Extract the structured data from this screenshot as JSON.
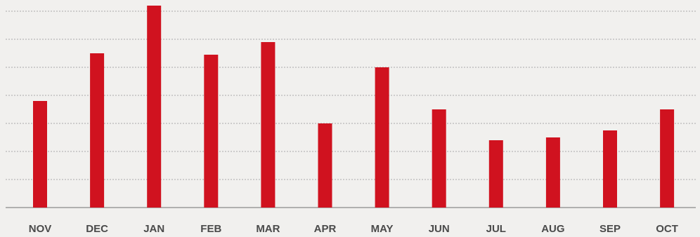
{
  "chart_data": {
    "type": "bar",
    "categories": [
      "NOV",
      "DEC",
      "JAN",
      "FEB",
      "MAR",
      "APR",
      "MAY",
      "JUN",
      "JUL",
      "AUG",
      "SEP",
      "OCT"
    ],
    "values": [
      3.8,
      5.5,
      7.2,
      5.45,
      5.9,
      3.0,
      5.0,
      3.5,
      2.4,
      2.5,
      2.75,
      3.5
    ],
    "title": "",
    "xlabel": "",
    "ylabel": "",
    "ylim": [
      0,
      7
    ],
    "grid": true,
    "legend": "none",
    "bar_color": "#d0121f"
  }
}
